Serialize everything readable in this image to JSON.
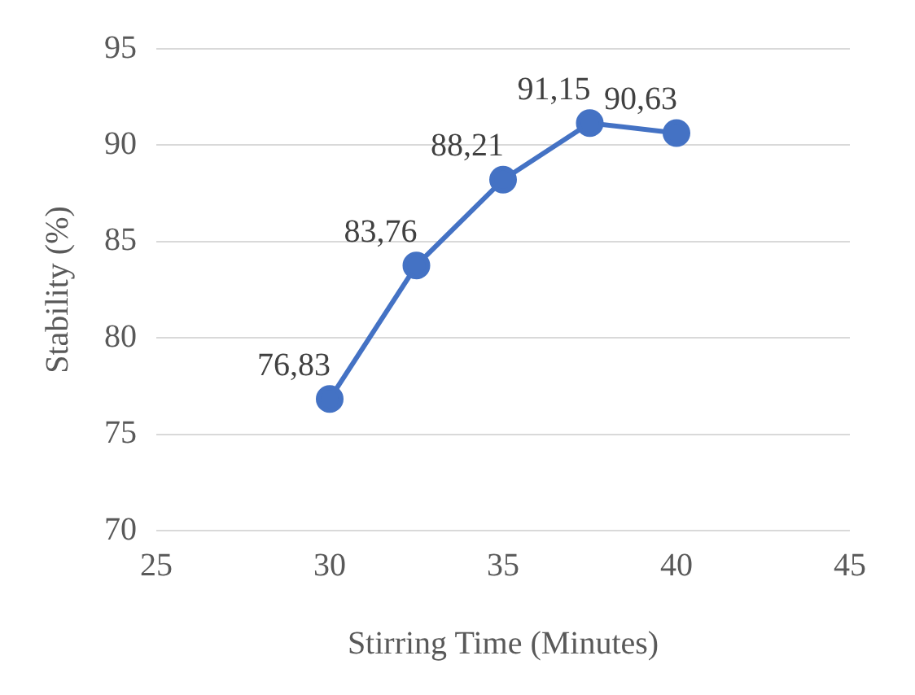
{
  "chart_data": {
    "type": "line",
    "xlabel": "Stirring Time (Minutes)",
    "ylabel": "Stability (%)",
    "x": [
      30,
      32.5,
      35,
      37.5,
      40
    ],
    "series": [
      {
        "color": "#4472c4",
        "values": [
          76.83,
          83.76,
          88.21,
          91.15,
          90.63
        ],
        "value_labels": [
          "76,83",
          "83,76",
          "88,21",
          "91,15",
          "90,63"
        ]
      }
    ],
    "xlim": [
      25,
      45
    ],
    "xticks": [
      25,
      30,
      35,
      40,
      45
    ],
    "ylim": [
      70,
      95
    ],
    "yticks": [
      70,
      75,
      80,
      85,
      90,
      95
    ],
    "grid": "y",
    "legend": false,
    "marker": "circle",
    "line_style": "solid"
  }
}
